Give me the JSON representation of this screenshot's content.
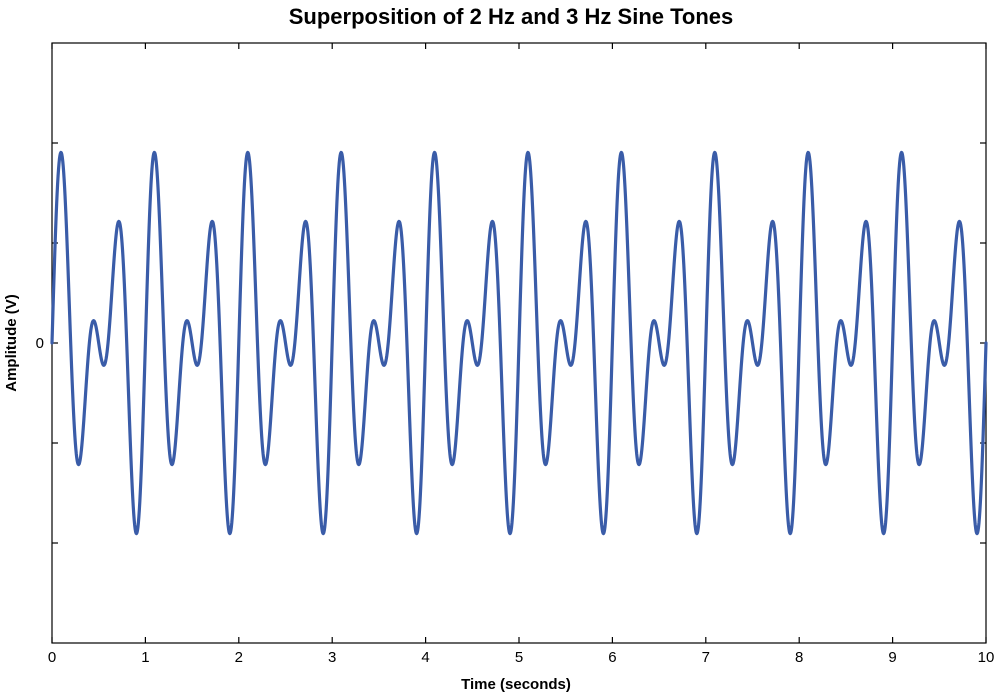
{
  "chart_data": {
    "type": "line",
    "title": "Superposition of 2 Hz and 3 Hz Sine Tones",
    "xlabel": "Time (seconds)",
    "ylabel": "Amplitude (V)",
    "xlim": [
      0,
      10
    ],
    "ylim": [
      -3,
      3
    ],
    "x_ticks": [
      0,
      1,
      2,
      3,
      4,
      5,
      6,
      7,
      8,
      9,
      10
    ],
    "x_tick_labels": [
      "0",
      "1",
      "2",
      "3",
      "4",
      "5",
      "6",
      "7",
      "8",
      "9",
      "10"
    ],
    "y_ticks": [
      -2,
      -1,
      0,
      1,
      2
    ],
    "y_tick_labels": [
      "",
      "",
      "0",
      "",
      ""
    ],
    "grid": false,
    "series": [
      {
        "color": "#3a5ca8",
        "components": [
          {
            "frequency": 2,
            "amplitude": 1
          },
          {
            "frequency": 3,
            "amplitude": 1
          }
        ]
      }
    ]
  }
}
